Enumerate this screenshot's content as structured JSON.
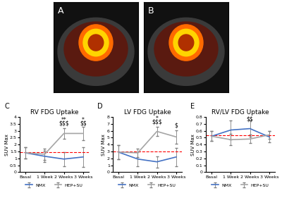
{
  "chart_data": [
    {
      "type": "image",
      "panel_label": "A"
    },
    {
      "type": "image",
      "panel_label": "B"
    },
    {
      "type": "line",
      "panel_label": "C",
      "title": "RV FDG Uptake",
      "y_label": "SUV Max",
      "categories": [
        "Basal",
        "1 Week",
        "2 Weeks",
        "3 Weeks"
      ],
      "series": [
        {
          "name": "NMX",
          "color": "#4472c4",
          "values": [
            1.4,
            1.15,
            0.95,
            1.1
          ],
          "errors": [
            0.4,
            0.4,
            0.5,
            0.7
          ]
        },
        {
          "name": "HEP+SU",
          "color": "#a5a5a5",
          "values": [
            1.4,
            1.3,
            2.8,
            2.8
          ],
          "errors": [
            0.4,
            0.4,
            0.4,
            0.5
          ]
        }
      ],
      "reference_line": {
        "value": 1.45,
        "color": "#ff0000",
        "line_style": "dashed"
      },
      "annotations": [
        {
          "text": "**",
          "category": 2,
          "y": 3.55
        },
        {
          "text": "$$$",
          "category": 2,
          "y": 3.3
        },
        {
          "text": "*",
          "category": 3,
          "y": 3.55
        },
        {
          "text": "$$",
          "category": 3,
          "y": 3.3
        }
      ],
      "ylim": [
        0,
        4
      ],
      "yticks": [
        0,
        0.5,
        1,
        1.5,
        2,
        2.5,
        3,
        3.5,
        4
      ],
      "legend": "bottom"
    },
    {
      "type": "line",
      "panel_label": "D",
      "title": "LV FDG Uptake",
      "y_label": "SUV Max",
      "categories": [
        "Basal",
        "1 Week",
        "2 Weeks",
        "3 Weeks"
      ],
      "series": [
        {
          "name": "NMX",
          "color": "#4472c4",
          "values": [
            2.9,
            1.9,
            1.5,
            2.2
          ],
          "errors": [
            1.0,
            1.0,
            0.8,
            1.3
          ]
        },
        {
          "name": "HEP+SU",
          "color": "#a5a5a5",
          "values": [
            2.9,
            2.8,
            5.9,
            5.1
          ],
          "errors": [
            1.0,
            0.6,
            0.7,
            1.0
          ]
        }
      ],
      "reference_line": {
        "value": 3.0,
        "color": "#ff0000",
        "line_style": "dashed"
      },
      "annotations": [
        {
          "text": "*",
          "category": 2,
          "y": 7.3
        },
        {
          "text": "$$$",
          "category": 2,
          "y": 6.8
        },
        {
          "text": "$",
          "category": 3,
          "y": 6.3
        }
      ],
      "ylim": [
        0,
        8
      ],
      "yticks": [
        0,
        1,
        2,
        3,
        4,
        5,
        6,
        7,
        8
      ],
      "legend": "bottom"
    },
    {
      "type": "line",
      "panel_label": "E",
      "title": "RV/LV FDG Uptake",
      "y_label": "SUV Max",
      "categories": [
        "Basal",
        "1 Week",
        "2 Weeks",
        "3 Weeks"
      ],
      "series": [
        {
          "name": "NMX",
          "color": "#4472c4",
          "values": [
            0.52,
            0.61,
            0.63,
            0.51
          ],
          "errors": [
            0.07,
            0.14,
            0.12,
            0.08
          ]
        },
        {
          "name": "HEP+SU",
          "color": "#a5a5a5",
          "values": [
            0.52,
            0.47,
            0.48,
            0.54
          ],
          "errors": [
            0.07,
            0.08,
            0.06,
            0.06
          ]
        }
      ],
      "reference_line": {
        "value": 0.53,
        "color": "#ff0000",
        "line_style": "dashed"
      },
      "annotations": [
        {
          "text": "$$",
          "category": 2,
          "y": 0.72
        }
      ],
      "ylim": [
        0,
        0.8
      ],
      "yticks": [
        0,
        0.1,
        0.2,
        0.3,
        0.4,
        0.5,
        0.6,
        0.7,
        0.8
      ],
      "legend": "bottom"
    }
  ]
}
